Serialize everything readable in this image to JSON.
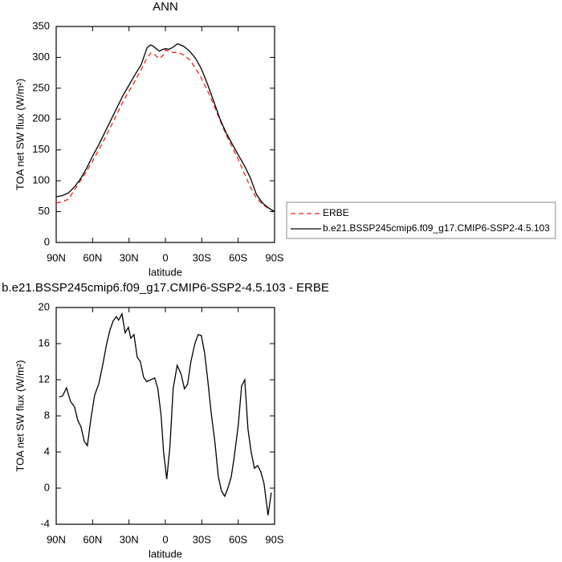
{
  "chart_data": [
    {
      "type": "line",
      "title": "ANN",
      "xlabel": "latitude",
      "ylabel": "TOA net SW flux (W/m²)",
      "x": [
        90,
        85,
        80,
        75,
        70,
        65,
        60,
        55,
        50,
        45,
        40,
        35,
        30,
        25,
        20,
        15,
        12,
        10,
        5,
        2,
        0,
        -3,
        -6,
        -10,
        -15,
        -20,
        -25,
        -30,
        -35,
        -40,
        -45,
        -50,
        -55,
        -60,
        -65,
        -70,
        -75,
        -80,
        -85,
        -90
      ],
      "series": [
        {
          "name": "ERBE",
          "color": "#e8231f",
          "dash": true,
          "values": [
            64,
            66,
            70,
            85,
            100,
            115,
            132,
            150,
            168,
            188,
            208,
            228,
            245,
            262,
            280,
            300,
            307,
            306,
            298,
            303,
            312,
            310,
            308,
            308,
            304,
            296,
            282,
            265,
            245,
            222,
            198,
            175,
            155,
            135,
            112,
            90,
            72,
            62,
            55,
            50
          ]
        },
        {
          "name": "b.e21.BSSP245cmip6.f09_g17.CMIP6-SSP2-4.5.103",
          "color": "#000000",
          "dash": false,
          "values": [
            74,
            76,
            80,
            90,
            103,
            120,
            140,
            158,
            178,
            198,
            218,
            238,
            255,
            272,
            288,
            316,
            320,
            318,
            310,
            313,
            314,
            313,
            316,
            322,
            318,
            310,
            298,
            280,
            255,
            228,
            200,
            178,
            160,
            142,
            125,
            105,
            78,
            64,
            56,
            50
          ]
        }
      ],
      "xlim": [
        90,
        -90
      ],
      "xticks": [
        {
          "value": 90,
          "label": "90N"
        },
        {
          "value": 60,
          "label": "60N"
        },
        {
          "value": 30,
          "label": "30N"
        },
        0,
        {
          "value": -30,
          "label": "30S"
        },
        {
          "value": -60,
          "label": "60S"
        },
        {
          "value": -90,
          "label": "90S"
        }
      ],
      "ylim": [
        0,
        350
      ],
      "yticks": [
        0,
        50,
        100,
        150,
        200,
        250,
        300,
        350
      ],
      "legend": "right"
    },
    {
      "type": "line",
      "title": "b.e21.BSSP245cmip6.f09_g17.CMIP6-SSP2-4.5.103 - ERBE",
      "xlabel": "latitude",
      "ylabel": "TOA net SW flux (W/m²)",
      "x": [
        87.4,
        84.8,
        81.5,
        78.2,
        74.9,
        72.2,
        69.6,
        66.9,
        64.3,
        61.6,
        58.3,
        55.0,
        51.7,
        48.4,
        45.7,
        43.1,
        40.4,
        38.5,
        35.8,
        33.2,
        30.5,
        28.5,
        25.9,
        23.2,
        20.6,
        18.0,
        15.4,
        12.1,
        8.8,
        6.2,
        3.5,
        1.5,
        -1.1,
        -3.7,
        -6.4,
        -9.7,
        -13.0,
        -15.7,
        -18.3,
        -21.0,
        -24.3,
        -27.0,
        -29.6,
        -32.3,
        -34.9,
        -37.6,
        -40.9,
        -43.6,
        -46.2,
        -48.9,
        -51.5,
        -54.2,
        -56.8,
        -60.1,
        -62.8,
        -65.4,
        -68.1,
        -70.7,
        -73.4,
        -76.0,
        -78.7,
        -81.3,
        -84.6,
        -87.3
      ],
      "series": [
        {
          "color": "#000000",
          "dash": false,
          "values": [
            10.1,
            10.2,
            11.1,
            9.6,
            9.0,
            7.5,
            6.8,
            5.2,
            4.7,
            7.5,
            10.3,
            11.5,
            13.6,
            16.0,
            17.5,
            18.5,
            19.0,
            18.6,
            19.3,
            17.2,
            17.8,
            16.6,
            17.0,
            14.5,
            14.0,
            12.3,
            11.8,
            12.0,
            12.2,
            11.0,
            8.0,
            4.0,
            1.0,
            4.5,
            11.0,
            13.6,
            12.6,
            11.0,
            11.5,
            14.0,
            16.0,
            17.0,
            16.9,
            15.0,
            12.0,
            8.5,
            5.0,
            1.3,
            -0.3,
            -0.9,
            0.0,
            1.2,
            3.5,
            7.0,
            11.3,
            12.0,
            6.5,
            4.0,
            2.2,
            2.5,
            1.8,
            0.5,
            -3.0,
            -0.5
          ]
        }
      ],
      "xlim": [
        90,
        -90
      ],
      "xticks": [
        {
          "value": 90,
          "label": "90N"
        },
        {
          "value": 60,
          "label": "60N"
        },
        {
          "value": 30,
          "label": "30N"
        },
        0,
        {
          "value": -30,
          "label": "30S"
        },
        {
          "value": -60,
          "label": "60S"
        },
        {
          "value": -90,
          "label": "90S"
        }
      ],
      "ylim": [
        -4,
        20
      ],
      "yticks": [
        -4,
        0,
        4,
        8,
        12,
        16,
        20
      ]
    }
  ]
}
